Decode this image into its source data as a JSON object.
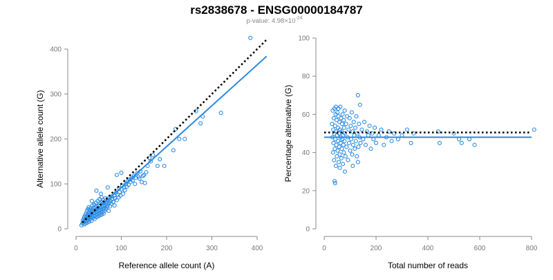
{
  "header": {
    "title": "rs2838678 - ENSG00000184787",
    "pvalue_prefix": "p-value: 4.98×10",
    "pvalue_exp": "-24"
  },
  "colors": {
    "point": "#2a8ae2",
    "fit": "#2a8ae2",
    "reference": "#000000"
  },
  "chart_data": [
    {
      "type": "scatter",
      "xlabel": "Reference allele count (A)",
      "ylabel": "Alternative allele count (G)",
      "xlim": [
        0,
        400
      ],
      "ylim": [
        0,
        400
      ],
      "xticks": [
        0,
        100,
        200,
        300,
        400
      ],
      "yticks": [
        0,
        100,
        200,
        300,
        400
      ],
      "points": [
        [
          12,
          8
        ],
        [
          14,
          12
        ],
        [
          15,
          18
        ],
        [
          16,
          14
        ],
        [
          17,
          22
        ],
        [
          18,
          10
        ],
        [
          18,
          26
        ],
        [
          19,
          16
        ],
        [
          20,
          20
        ],
        [
          20,
          30
        ],
        [
          21,
          12
        ],
        [
          22,
          24
        ],
        [
          22,
          34
        ],
        [
          23,
          18
        ],
        [
          24,
          28
        ],
        [
          24,
          40
        ],
        [
          25,
          14
        ],
        [
          25,
          22
        ],
        [
          26,
          32
        ],
        [
          26,
          44
        ],
        [
          27,
          20
        ],
        [
          28,
          26
        ],
        [
          28,
          36
        ],
        [
          29,
          16
        ],
        [
          30,
          30
        ],
        [
          30,
          42
        ],
        [
          31,
          22
        ],
        [
          32,
          34
        ],
        [
          32,
          46
        ],
        [
          33,
          26
        ],
        [
          34,
          38
        ],
        [
          34,
          18
        ],
        [
          35,
          30
        ],
        [
          36,
          42
        ],
        [
          36,
          52
        ],
        [
          37,
          24
        ],
        [
          38,
          34
        ],
        [
          38,
          46
        ],
        [
          39,
          28
        ],
        [
          40,
          40
        ],
        [
          40,
          54
        ],
        [
          41,
          22
        ],
        [
          42,
          36
        ],
        [
          42,
          48
        ],
        [
          43,
          30
        ],
        [
          44,
          42
        ],
        [
          44,
          58
        ],
        [
          45,
          26
        ],
        [
          46,
          38
        ],
        [
          46,
          50
        ],
        [
          47,
          32
        ],
        [
          48,
          44
        ],
        [
          48,
          62
        ],
        [
          49,
          28
        ],
        [
          50,
          40
        ],
        [
          50,
          52
        ],
        [
          51,
          34
        ],
        [
          52,
          46
        ],
        [
          52,
          66
        ],
        [
          53,
          30
        ],
        [
          54,
          42
        ],
        [
          54,
          56
        ],
        [
          55,
          36
        ],
        [
          56,
          48
        ],
        [
          56,
          70
        ],
        [
          57,
          32
        ],
        [
          58,
          44
        ],
        [
          58,
          60
        ],
        [
          59,
          38
        ],
        [
          60,
          50
        ],
        [
          60,
          64
        ],
        [
          61,
          34
        ],
        [
          62,
          46
        ],
        [
          62,
          58
        ],
        [
          63,
          40
        ],
        [
          64,
          52
        ],
        [
          65,
          68
        ],
        [
          66,
          44
        ],
        [
          67,
          56
        ],
        [
          68,
          48
        ],
        [
          69,
          60
        ],
        [
          70,
          52
        ],
        [
          71,
          64
        ],
        [
          72,
          40
        ],
        [
          73,
          58
        ],
        [
          74,
          70
        ],
        [
          75,
          50
        ],
        [
          76,
          62
        ],
        [
          78,
          56
        ],
        [
          79,
          72
        ],
        [
          80,
          66
        ],
        [
          82,
          60
        ],
        [
          84,
          74
        ],
        [
          85,
          52
        ],
        [
          86,
          68
        ],
        [
          88,
          80
        ],
        [
          90,
          64
        ],
        [
          92,
          76
        ],
        [
          94,
          70
        ],
        [
          95,
          90
        ],
        [
          96,
          82
        ],
        [
          98,
          74
        ],
        [
          100,
          88
        ],
        [
          102,
          96
        ],
        [
          104,
          78
        ],
        [
          106,
          92
        ],
        [
          108,
          86
        ],
        [
          110,
          100
        ],
        [
          112,
          94
        ],
        [
          114,
          106
        ],
        [
          116,
          98
        ],
        [
          118,
          110
        ],
        [
          120,
          104
        ],
        [
          122,
          112
        ],
        [
          125,
          108
        ],
        [
          128,
          118
        ],
        [
          130,
          100
        ],
        [
          132,
          114
        ],
        [
          135,
          124
        ],
        [
          138,
          116
        ],
        [
          140,
          112
        ],
        [
          142,
          128
        ],
        [
          145,
          104
        ],
        [
          148,
          118
        ],
        [
          150,
          120
        ],
        [
          152,
          102
        ],
        [
          155,
          126
        ],
        [
          158,
          140
        ],
        [
          162,
          158
        ],
        [
          165,
          150
        ],
        [
          170,
          164
        ],
        [
          180,
          140
        ],
        [
          185,
          155
        ],
        [
          195,
          140
        ],
        [
          215,
          175
        ],
        [
          220,
          222
        ],
        [
          228,
          200
        ],
        [
          240,
          200
        ],
        [
          265,
          262
        ],
        [
          275,
          235
        ],
        [
          280,
          250
        ],
        [
          320,
          258
        ],
        [
          385,
          425
        ],
        [
          45,
          85
        ],
        [
          55,
          78
        ],
        [
          70,
          92
        ],
        [
          35,
          62
        ],
        [
          28,
          48
        ],
        [
          90,
          120
        ],
        [
          100,
          125
        ]
      ],
      "fit_line": {
        "x": [
          14,
          421
        ],
        "y": [
          14,
          384
        ]
      },
      "reference_line": {
        "x": [
          14,
          421
        ],
        "y": [
          14,
          421
        ]
      }
    },
    {
      "type": "scatter",
      "xlabel": "Total number of reads",
      "ylabel": "Percentage alternative (G)",
      "xlim": [
        0,
        800
      ],
      "ylim": [
        0,
        100
      ],
      "xticks": [
        0,
        200,
        400,
        600,
        800
      ],
      "yticks": [
        0,
        20,
        40,
        60,
        80,
        100
      ],
      "points": [
        [
          30,
          55
        ],
        [
          32,
          48
        ],
        [
          33,
          62
        ],
        [
          34,
          40
        ],
        [
          35,
          52
        ],
        [
          36,
          45
        ],
        [
          37,
          58
        ],
        [
          38,
          36
        ],
        [
          39,
          50
        ],
        [
          40,
          63
        ],
        [
          41,
          42
        ],
        [
          42,
          54
        ],
        [
          43,
          47
        ],
        [
          44,
          60
        ],
        [
          45,
          33
        ],
        [
          46,
          51
        ],
        [
          47,
          44
        ],
        [
          48,
          57
        ],
        [
          49,
          38
        ],
        [
          50,
          49
        ],
        [
          51,
          61
        ],
        [
          52,
          41
        ],
        [
          53,
          53
        ],
        [
          54,
          46
        ],
        [
          55,
          59
        ],
        [
          56,
          35
        ],
        [
          57,
          50
        ],
        [
          58,
          43
        ],
        [
          59,
          56
        ],
        [
          60,
          39
        ],
        [
          61,
          52
        ],
        [
          62,
          64
        ],
        [
          63,
          45
        ],
        [
          64,
          48
        ],
        [
          65,
          58
        ],
        [
          66,
          37
        ],
        [
          67,
          51
        ],
        [
          68,
          42
        ],
        [
          69,
          55
        ],
        [
          70,
          47
        ],
        [
          71,
          60
        ],
        [
          72,
          34
        ],
        [
          73,
          49
        ],
        [
          74,
          44
        ],
        [
          75,
          57
        ],
        [
          76,
          40
        ],
        [
          77,
          53
        ],
        [
          78,
          46
        ],
        [
          79,
          62
        ],
        [
          80,
          50
        ],
        [
          82,
          38
        ],
        [
          84,
          55
        ],
        [
          86,
          43
        ],
        [
          88,
          59
        ],
        [
          90,
          48
        ],
        [
          92,
          36
        ],
        [
          94,
          52
        ],
        [
          96,
          45
        ],
        [
          98,
          58
        ],
        [
          100,
          41
        ],
        [
          102,
          54
        ],
        [
          104,
          47
        ],
        [
          106,
          61
        ],
        [
          108,
          39
        ],
        [
          110,
          51
        ],
        [
          112,
          44
        ],
        [
          114,
          56
        ],
        [
          116,
          49
        ],
        [
          118,
          42
        ],
        [
          120,
          53
        ],
        [
          122,
          46
        ],
        [
          124,
          59
        ],
        [
          126,
          38
        ],
        [
          128,
          50
        ],
        [
          130,
          70
        ],
        [
          132,
          43
        ],
        [
          134,
          55
        ],
        [
          136,
          48
        ],
        [
          138,
          65
        ],
        [
          140,
          45
        ],
        [
          145,
          52
        ],
        [
          150,
          47
        ],
        [
          155,
          56
        ],
        [
          160,
          44
        ],
        [
          165,
          51
        ],
        [
          170,
          49
        ],
        [
          175,
          54
        ],
        [
          180,
          42
        ],
        [
          185,
          50
        ],
        [
          190,
          47
        ],
        [
          195,
          53
        ],
        [
          200,
          45
        ],
        [
          210,
          49
        ],
        [
          220,
          52
        ],
        [
          230,
          44
        ],
        [
          240,
          48
        ],
        [
          250,
          51
        ],
        [
          260,
          46
        ],
        [
          270,
          50
        ],
        [
          285,
          47
        ],
        [
          300,
          49
        ],
        [
          320,
          52
        ],
        [
          335,
          45
        ],
        [
          345,
          50
        ],
        [
          440,
          51
        ],
        [
          445,
          45
        ],
        [
          500,
          50
        ],
        [
          520,
          47
        ],
        [
          530,
          45
        ],
        [
          560,
          47
        ],
        [
          580,
          44
        ],
        [
          810,
          52
        ],
        [
          40,
          25
        ],
        [
          42,
          24
        ],
        [
          60,
          32
        ],
        [
          80,
          30
        ],
        [
          110,
          33
        ],
        [
          130,
          35
        ],
        [
          55,
          63
        ],
        [
          45,
          64
        ]
      ],
      "fit_line": {
        "x": [
          0,
          800
        ],
        "y": [
          48,
          48
        ]
      },
      "reference_line": {
        "x": [
          0,
          800
        ],
        "y": [
          50.5,
          50.5
        ]
      }
    }
  ]
}
